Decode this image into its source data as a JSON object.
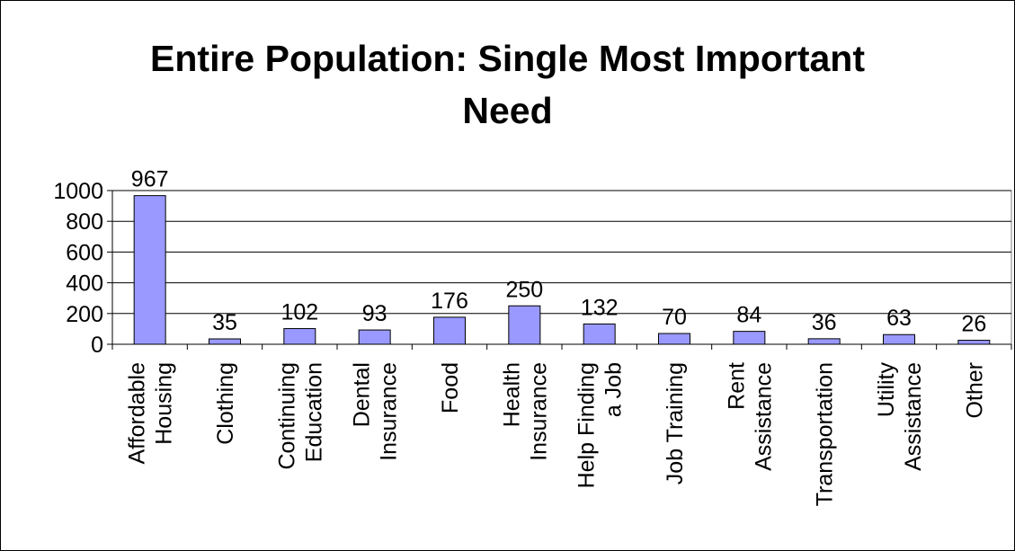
{
  "chart_data": {
    "type": "bar",
    "title_lines": [
      "Entire Population:  Single Most Important",
      "Need"
    ],
    "categories": [
      [
        "Affordable",
        "Housing"
      ],
      [
        "Clothing"
      ],
      [
        "Continuing",
        "Education"
      ],
      [
        "Dental",
        "Insurance"
      ],
      [
        "Food"
      ],
      [
        "Health",
        "Insurance"
      ],
      [
        "Help Finding",
        "a Job"
      ],
      [
        "Job Training"
      ],
      [
        "Rent",
        "Assistance"
      ],
      [
        "Transportation"
      ],
      [
        "Utility",
        "Assistance"
      ],
      [
        "Other"
      ]
    ],
    "values": [
      967,
      35,
      102,
      93,
      176,
      250,
      132,
      70,
      84,
      36,
      63,
      26
    ],
    "data_labels": [
      "967",
      "35",
      "102",
      "93",
      "176",
      "250",
      "132",
      "70",
      "84",
      "36",
      "63",
      "26"
    ],
    "yticks": [
      0,
      200,
      400,
      600,
      800,
      1000
    ],
    "ylim": [
      0,
      1000
    ],
    "grid": true,
    "legend": "none",
    "bar_color": "#9999ff",
    "bar_edge_color": "#000000"
  }
}
